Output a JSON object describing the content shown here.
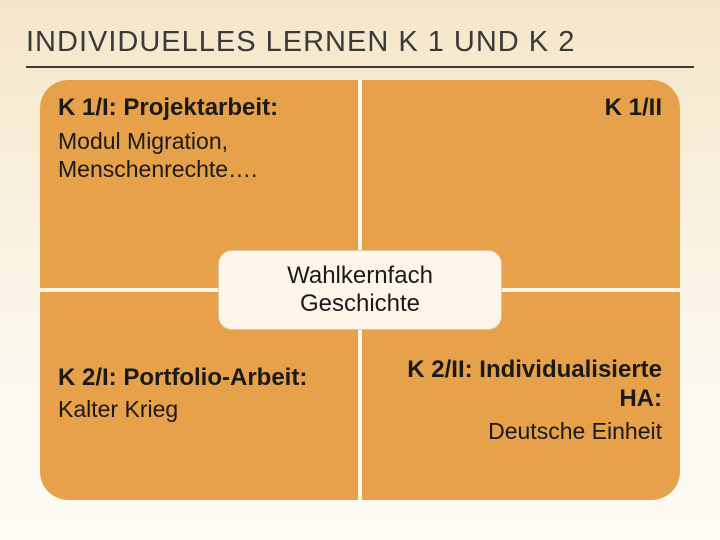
{
  "title": "INDIVIDUELLES LERNEN K 1 UND K 2",
  "quadrants": {
    "tl": {
      "heading": "K 1/I: Projektarbeit:",
      "body": "Modul Migration, Menschenrechte…."
    },
    "tr": {
      "heading": "K 1/II"
    },
    "bl": {
      "heading": "K 2/I: Portfolio-Arbeit:",
      "body": "Kalter Krieg"
    },
    "br": {
      "heading": "K 2/II: Individualisierte HA:",
      "body": "Deutsche Einheit"
    }
  },
  "center": "Wahlkernfach Geschichte",
  "colors": {
    "cell_bg": "#e6a14a",
    "divider": "#fdf7ea",
    "center_bg": "#fdf6e8",
    "center_border": "#d8caa8",
    "title_color": "#3a3a3a"
  }
}
